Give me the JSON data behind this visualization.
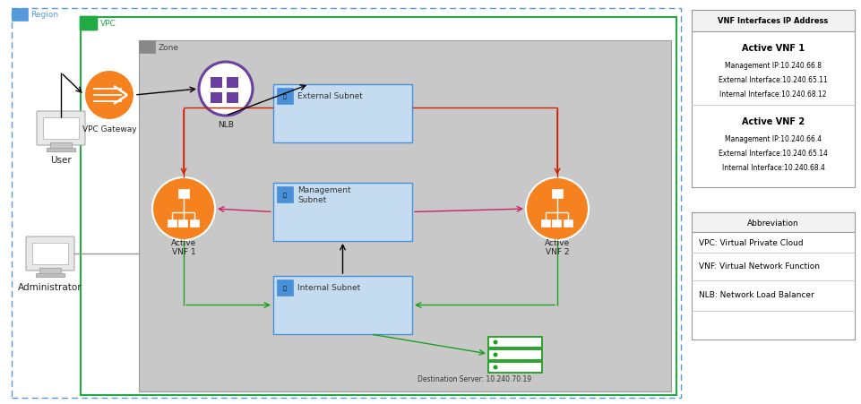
{
  "region_label": "Region",
  "vpc_label": "VPC",
  "zone_label": "Zone",
  "vpc_gateway_label": "VPC Gateway",
  "nlb_label": "NLB",
  "external_subnet_label": "External Subnet",
  "management_subnet_label": "Management\nSubnet",
  "internal_subnet_label": "Internal Subnet",
  "active_vnf1_label": "Active\nVNF 1",
  "active_vnf2_label": "Active\nVNF 2",
  "destination_server_label": "Destination Server: 10.240.70.19",
  "user_label": "User",
  "admin_label": "Administrator",
  "vnf_table_title": "VNF Interfaces IP Address",
  "vnf1_title": "Active VNF 1",
  "vnf1_mgmt": "Management IP:10.240.66.8",
  "vnf1_ext": "External Interface:10.240.65.11",
  "vnf1_int": "Internal Interface:10.240.68.12",
  "vnf2_title": "Active VNF 2",
  "vnf2_mgmt": "Management IP:10.240.66.4",
  "vnf2_ext": "External Interface:10.240.65.14",
  "vnf2_int": "Internal Interface:10.240.68.4",
  "abbrev_title": "Abbreviation",
  "abbrev1": "VPC: Virtual Private Cloud",
  "abbrev2": "VNF: Virtual Network Function",
  "abbrev3": "NLB: Network Load Balancer",
  "orange_color": "#F5821F",
  "purple_color": "#6B3FA0",
  "green_color": "#1DA01D",
  "blue_color": "#4A90D9",
  "red_arrow_color": "#CC2200",
  "pink_arrow_color": "#CC2266",
  "region_border_color": "#5599DD",
  "vpc_border_color": "#22AA44",
  "zone_bg_color": "#C8C8C8",
  "zone_border_color": "#999999",
  "subnet_bg_color": "#C5DCF0",
  "subnet_border_color": "#4A90D9",
  "subnet_label_color": "#333333",
  "server_green": "#1DA01D"
}
